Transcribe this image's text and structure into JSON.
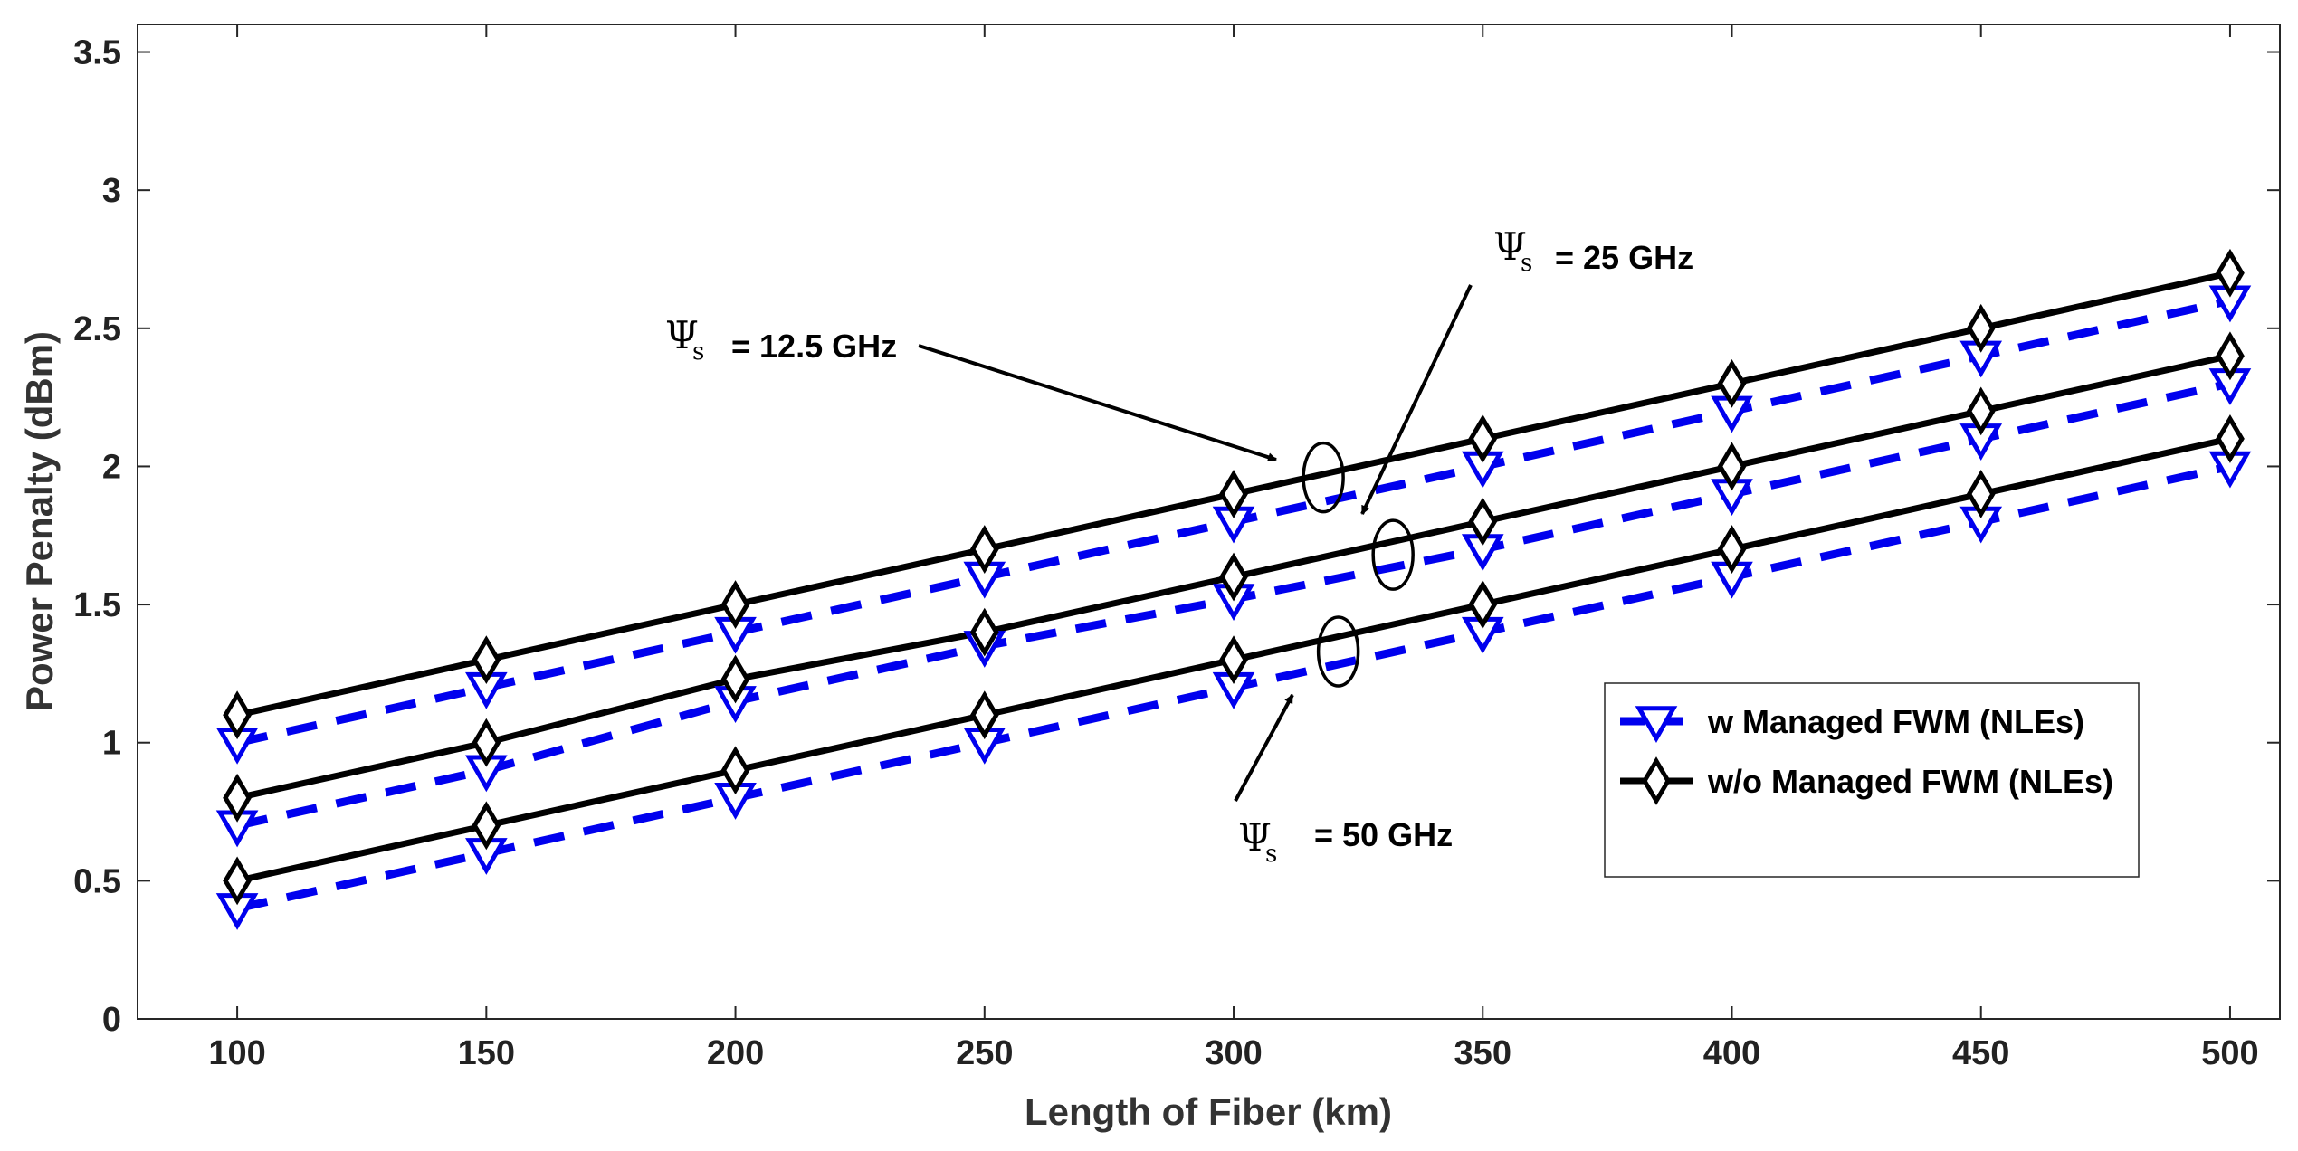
{
  "chart_data": {
    "type": "line",
    "title": "",
    "xlabel": "Length of Fiber (km)",
    "ylabel": "Power Penalty (dBm)",
    "x": [
      100,
      150,
      200,
      250,
      300,
      350,
      400,
      450,
      500
    ],
    "xticks": [
      "100",
      "150",
      "200",
      "250",
      "300",
      "350",
      "400",
      "450",
      "500"
    ],
    "yticks": [
      "0",
      "0.5",
      "1",
      "1.5",
      "2",
      "2.5",
      "3",
      "3.5"
    ],
    "xlim": [
      80,
      510
    ],
    "ylim": [
      0,
      3.6
    ],
    "grid": false,
    "legend_position": "center-right",
    "series": [
      {
        "name": "w Managed FWM (NLEs)",
        "group": "12.5 GHz",
        "style": "dashed",
        "marker": "triangle-down",
        "color": "#0000ee",
        "values": [
          1.0,
          1.2,
          1.4,
          1.6,
          1.8,
          2.0,
          2.2,
          2.4,
          2.6
        ]
      },
      {
        "name": "w Managed FWM (NLEs)",
        "group": "25 GHz",
        "style": "dashed",
        "marker": "triangle-down",
        "color": "#0000ee",
        "values": [
          0.7,
          0.9,
          1.15,
          1.35,
          1.52,
          1.7,
          1.9,
          2.1,
          2.3
        ]
      },
      {
        "name": "w Managed FWM (NLEs)",
        "group": "50 GHz",
        "style": "dashed",
        "marker": "triangle-down",
        "color": "#0000ee",
        "values": [
          0.4,
          0.6,
          0.8,
          1.0,
          1.2,
          1.4,
          1.6,
          1.8,
          2.0
        ]
      },
      {
        "name": "w/o Managed FWM (NLEs)",
        "group": "12.5 GHz",
        "style": "solid",
        "marker": "diamond",
        "color": "#000000",
        "values": [
          1.1,
          1.3,
          1.5,
          1.7,
          1.9,
          2.1,
          2.3,
          2.5,
          2.7
        ]
      },
      {
        "name": "w/o Managed FWM (NLEs)",
        "group": "25 GHz",
        "style": "solid",
        "marker": "diamond",
        "color": "#000000",
        "values": [
          0.8,
          1.0,
          1.23,
          1.4,
          1.6,
          1.8,
          2.0,
          2.2,
          2.4
        ]
      },
      {
        "name": "w/o Managed FWM (NLEs)",
        "group": "50 GHz",
        "style": "solid",
        "marker": "diamond",
        "color": "#000000",
        "values": [
          0.5,
          0.7,
          0.9,
          1.1,
          1.3,
          1.5,
          1.7,
          1.9,
          2.1
        ]
      }
    ],
    "legend": [
      {
        "label": "w Managed FWM (NLEs)",
        "style": "dashed",
        "marker": "triangle-down",
        "color": "#0000ee"
      },
      {
        "label": "w/o Managed FWM (NLEs)",
        "style": "solid",
        "marker": "diamond",
        "color": "#000000"
      }
    ],
    "annotations": [
      {
        "symbol": "Ψ",
        "subscript": "s",
        "text": "= 12.5 GHz",
        "ellipse_at": [
          318,
          1.96
        ]
      },
      {
        "symbol": "Ψ",
        "subscript": "s",
        "text": "= 25 GHz",
        "ellipse_at": [
          332,
          1.68
        ]
      },
      {
        "symbol": "Ψ",
        "subscript": "s",
        "text": "= 50 GHz",
        "ellipse_at": [
          321,
          1.33
        ]
      }
    ]
  }
}
